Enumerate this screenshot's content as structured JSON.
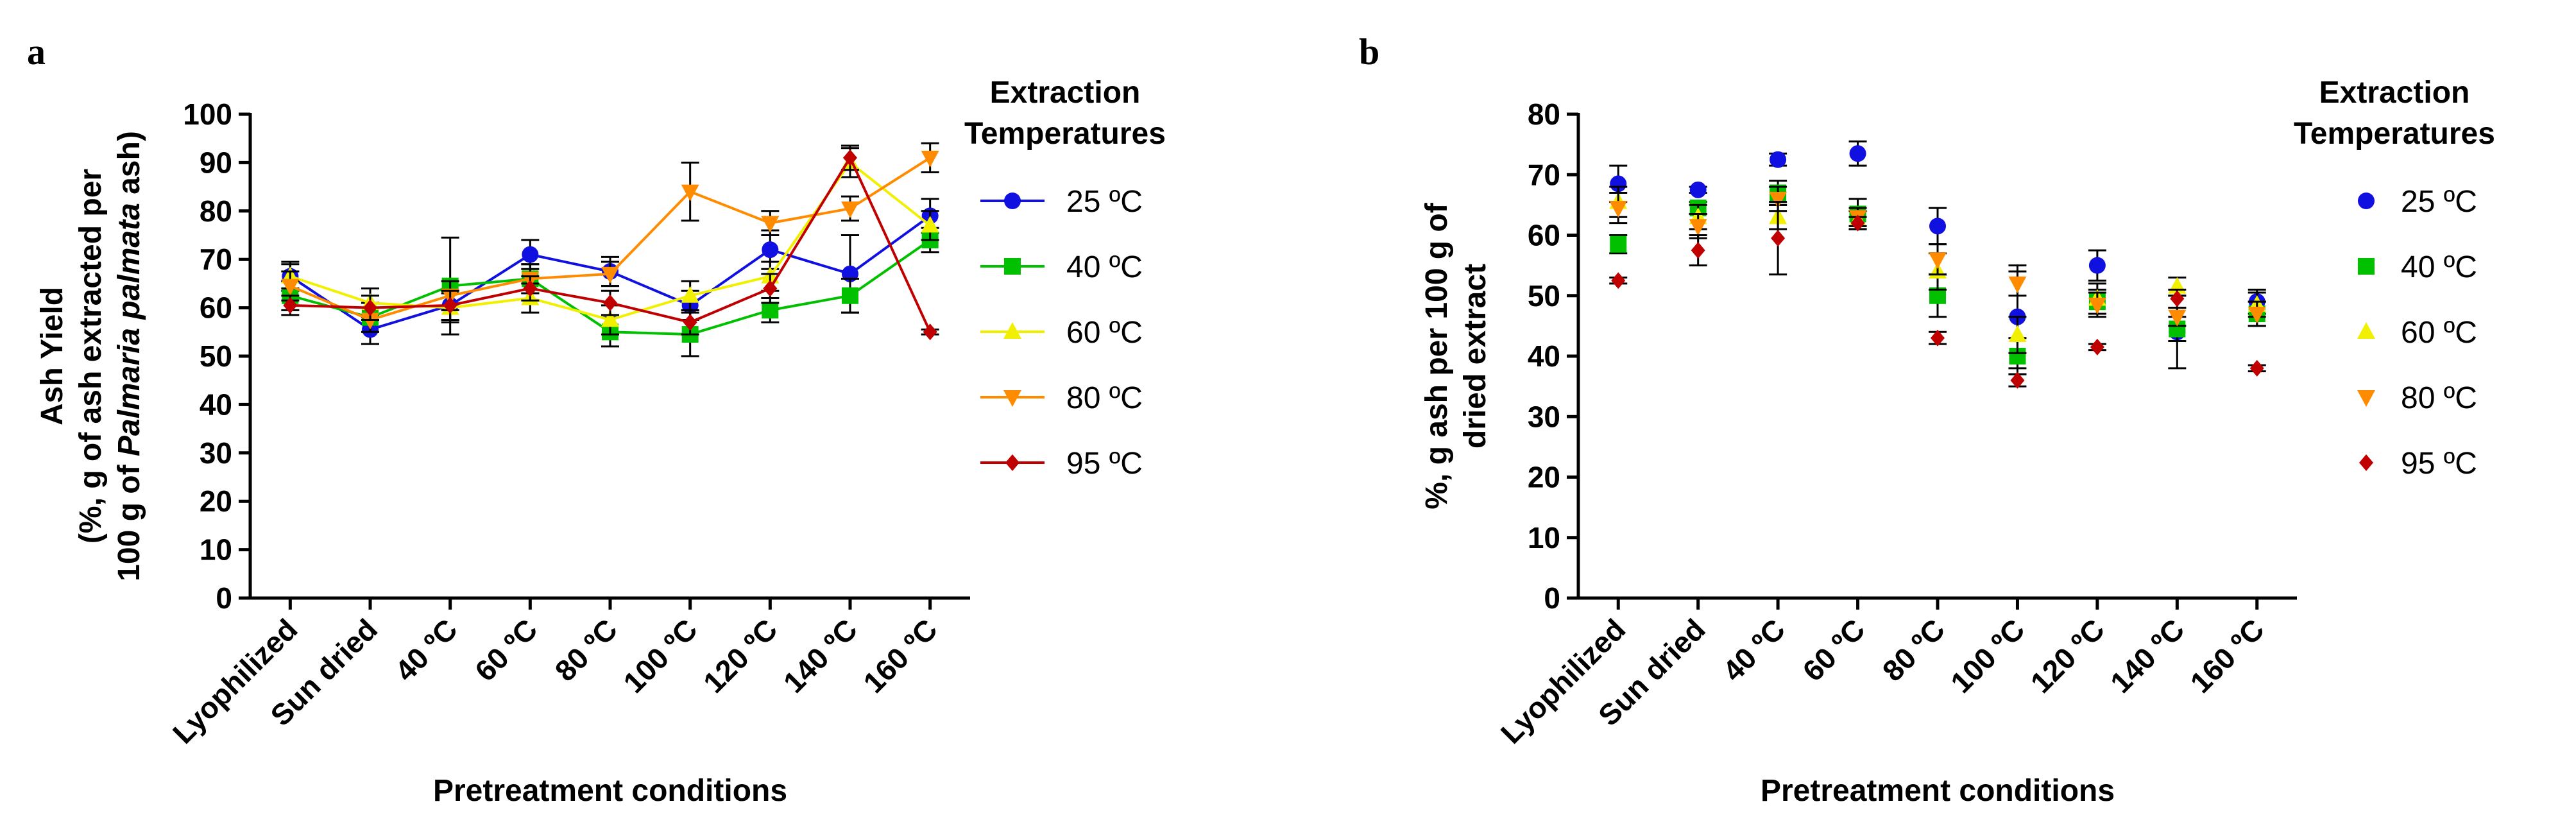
{
  "chart_data": [
    {
      "panel": "a",
      "type": "line",
      "ylabel_lines": [
        "Ash Yield",
        "(%, g of ash extracted per"
      ],
      "ylabel_line3": {
        "pre": "100 g of ",
        "italic": "Palmaria palmata",
        "post": " ash)"
      },
      "xlabel": "Pretreatment conditions",
      "ylim": [
        0,
        100
      ],
      "yticks": [
        "0",
        "10",
        "20",
        "30",
        "40",
        "50",
        "60",
        "70",
        "80",
        "90",
        "100"
      ],
      "categories": [
        "Lyophilized",
        "Sun dried",
        "40 ºC",
        "60 ºC",
        "80 ºC",
        "100 ºC",
        "120 ºC",
        "140 ºC",
        "160 ºC"
      ],
      "legend_title": [
        "Extraction",
        "Temperatures"
      ],
      "series": [
        {
          "name": "25 ºC",
          "color": "#1010e0",
          "marker": "circle",
          "values": [
            66.5,
            55.5,
            60.5,
            71,
            67.5,
            60.5,
            72,
            67,
            79
          ],
          "errors": [
            3,
            3,
            3,
            3,
            3,
            3,
            4,
            8,
            3.5
          ]
        },
        {
          "name": "40 ºC",
          "color": "#00c000",
          "marker": "square",
          "values": [
            62.5,
            58,
            64.5,
            66,
            55,
            54.5,
            59.5,
            62.5,
            74
          ],
          "errors": [
            3,
            3,
            10,
            3,
            3,
            4.5,
            2.5,
            3.5,
            2.5
          ]
        },
        {
          "name": "60 ºC",
          "color": "#f0f000",
          "marker": "triangle-up",
          "values": [
            66.5,
            61,
            60,
            62,
            57.5,
            62.5,
            66.5,
            90,
            77
          ],
          "errors": [
            2.5,
            3,
            3,
            3,
            3,
            3,
            3,
            3,
            3
          ]
        },
        {
          "name": "80 ºC",
          "color": "#ff8c00",
          "marker": "triangle-down",
          "values": [
            64.5,
            57.5,
            62.5,
            66,
            67,
            84,
            77.5,
            80.5,
            91
          ],
          "errors": [
            3,
            2.5,
            3,
            3,
            2.5,
            6,
            2.5,
            2.5,
            3
          ]
        },
        {
          "name": "95 ºC",
          "color": "#c00000",
          "marker": "diamond",
          "values": [
            60.5,
            60,
            60.5,
            64,
            61,
            57,
            64,
            91,
            55
          ],
          "errors": [
            2,
            2.5,
            3,
            2.5,
            2.5,
            2.5,
            3,
            2.5,
            0.5
          ]
        }
      ]
    },
    {
      "panel": "b",
      "type": "scatter",
      "ylabel_lines": [
        "%, g ash per 100 g of",
        "dried extract"
      ],
      "xlabel": "Pretreatment conditions",
      "ylim": [
        0,
        80
      ],
      "yticks": [
        "0",
        "10",
        "20",
        "30",
        "40",
        "50",
        "60",
        "70",
        "80"
      ],
      "categories": [
        "Lyophilized",
        "Sun dried",
        "40 ºC",
        "60 ºC",
        "80 ºC",
        "100 ºC",
        "120 ºC",
        "140 ºC",
        "160 ºC"
      ],
      "legend_title": [
        "Extraction",
        "Temperatures"
      ],
      "series": [
        {
          "name": "25 ºC",
          "color": "#1010e0",
          "marker": "circle",
          "values": [
            68.5,
            67.5,
            72.5,
            73.5,
            61.5,
            46.5,
            55,
            44,
            49
          ],
          "errors": [
            3,
            0.5,
            1,
            2,
            3,
            8.5,
            2.5,
            6,
            2
          ]
        },
        {
          "name": "40 ºC",
          "color": "#00c000",
          "marker": "square",
          "values": [
            58.5,
            64.5,
            67,
            63.5,
            50,
            40,
            49,
            44.5,
            47
          ],
          "errors": [
            1.5,
            1,
            2,
            2.5,
            3.5,
            3,
            2,
            2,
            2
          ]
        },
        {
          "name": "60 ºC",
          "color": "#f0f000",
          "marker": "triangle-up",
          "values": [
            65.5,
            63,
            63,
            62.5,
            54,
            43.5,
            49.5,
            51.5,
            48.5
          ],
          "errors": [
            2.5,
            2,
            2,
            1.5,
            3,
            3,
            2.5,
            1.5,
            2
          ]
        },
        {
          "name": "80 ºC",
          "color": "#ff8c00",
          "marker": "triangle-down",
          "values": [
            64.5,
            61.5,
            66,
            63,
            56,
            52,
            48.5,
            46.5,
            47
          ],
          "errors": [
            2.5,
            2,
            2,
            1.5,
            2.5,
            2,
            2,
            1.5,
            2
          ]
        },
        {
          "name": "95 ºC",
          "color": "#c00000",
          "marker": "diamond",
          "values": [
            52.5,
            57.5,
            59.5,
            62,
            43,
            36,
            41.5,
            49.5,
            38
          ],
          "errors": [
            0.5,
            2.5,
            6,
            1,
            1,
            1,
            0.5,
            1.5,
            0.5
          ]
        }
      ]
    }
  ]
}
